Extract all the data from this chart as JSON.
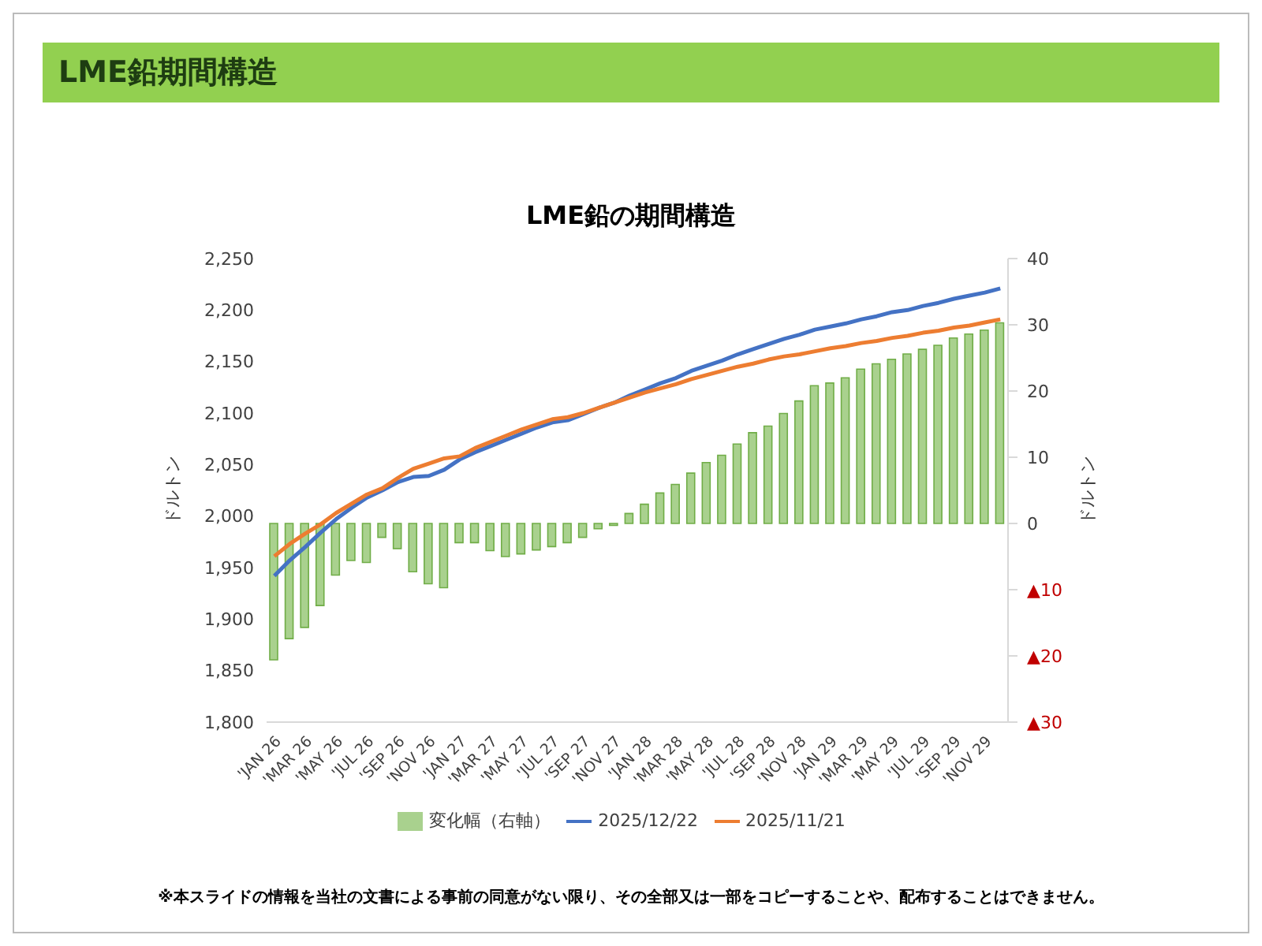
{
  "chart_data": {
    "type": "line",
    "title": "LME鉛期間構造",
    "subtitle": "LME鉛の期間構造",
    "ylabel": "ドルトン",
    "y2label": "ドルトン",
    "categories": [
      "'JAN 26",
      null,
      "'MAR 26",
      null,
      "'MAY 26",
      null,
      "'JUL 26",
      null,
      "'SEP 26",
      null,
      "'NOV 26",
      null,
      "'JAN 27",
      null,
      "'MAR 27",
      null,
      "'MAY 27",
      null,
      "'JUL 27",
      null,
      "'SEP 27",
      null,
      "'NOV 27",
      null,
      "'JAN 28",
      null,
      "'MAR 28",
      null,
      "'MAY 28",
      null,
      "'JUL 28",
      null,
      "'SEP 28",
      null,
      "'NOV 28",
      null,
      "'JAN 29",
      null,
      "'MAR 29",
      null,
      "'MAY 29",
      null,
      "'JUL 29",
      null,
      "'SEP 29",
      null,
      "'NOV 29",
      null
    ],
    "series": [
      {
        "name": "変化幅（右軸）",
        "type": "bar",
        "axis": "y2",
        "color": "#a9d18e",
        "values": [
          -20.6,
          -17.4,
          -15.7,
          -12.4,
          -7.8,
          -5.6,
          -5.9,
          -2.1,
          -3.8,
          -7.3,
          -9.1,
          -9.7,
          -2.9,
          -2.9,
          -4.1,
          -5,
          -4.6,
          -4,
          -3.5,
          -2.9,
          -2.1,
          -0.8,
          -0.3,
          1.5,
          2.9,
          4.6,
          5.9,
          7.6,
          9.2,
          10.3,
          12,
          13.7,
          14.7,
          16.6,
          18.5,
          20.8,
          21.2,
          22,
          23.3,
          24.1,
          24.8,
          25.6,
          26.3,
          26.9,
          28,
          28.6,
          29.2,
          30.3
        ]
      },
      {
        "name": "2025/12/22",
        "color": "#4472c4",
        "values": [
          1942,
          1957,
          1970,
          1984,
          1997,
          2008,
          2018,
          2025,
          2033,
          2038,
          2039,
          2045,
          2055,
          2062,
          2068,
          2074,
          2080,
          2086,
          2091,
          2093,
          2099,
          2105,
          2110,
          2117,
          2123,
          2129,
          2134,
          2141,
          2146,
          2151,
          2157,
          2162,
          2167,
          2172,
          2176,
          2181,
          2184,
          2187,
          2191,
          2194,
          2198,
          2200,
          2204,
          2207,
          2211,
          2214,
          2217,
          2221
        ]
      },
      {
        "name": "2025/11/21",
        "color": "#ed7d31",
        "values": [
          1961,
          1973,
          1983,
          1992,
          2003,
          2012,
          2021,
          2027,
          2037,
          2046,
          2051,
          2056,
          2058,
          2066,
          2072,
          2078,
          2084,
          2089,
          2094,
          2096,
          2100,
          2105,
          2110,
          2115,
          2120,
          2124,
          2128,
          2133,
          2137,
          2141,
          2145,
          2148,
          2152,
          2155,
          2157,
          2160,
          2163,
          2165,
          2168,
          2170,
          2173,
          2175,
          2178,
          2180,
          2183,
          2185,
          2188,
          2191
        ]
      }
    ],
    "ylim": [
      1800,
      2250
    ],
    "yticks": [
      {
        "value": 1800,
        "label": "1,800"
      },
      {
        "value": 1850,
        "label": "1,850"
      },
      {
        "value": 1900,
        "label": "1,900"
      },
      {
        "value": 1950,
        "label": "1,950"
      },
      {
        "value": 2000,
        "label": "2,000"
      },
      {
        "value": 2050,
        "label": "2,050"
      },
      {
        "value": 2100,
        "label": "2,100"
      },
      {
        "value": 2150,
        "label": "2,150"
      },
      {
        "value": 2200,
        "label": "2,200"
      },
      {
        "value": 2250,
        "label": "2,250"
      }
    ],
    "y2lim": [
      -30,
      40
    ],
    "y2ticks": [
      {
        "value": -30,
        "label": "▲30"
      },
      {
        "value": -20,
        "label": "▲20"
      },
      {
        "value": -10,
        "label": "▲10"
      },
      0,
      10,
      20,
      30,
      40
    ],
    "grid": false,
    "legend": "bottom",
    "marker": "none",
    "line_style": "solid",
    "annotations": [
      "※本スライドの情報を当社の文書による事前の同意がない限り、その全部又は一部をコピーすることや、配布することはできません。"
    ]
  }
}
